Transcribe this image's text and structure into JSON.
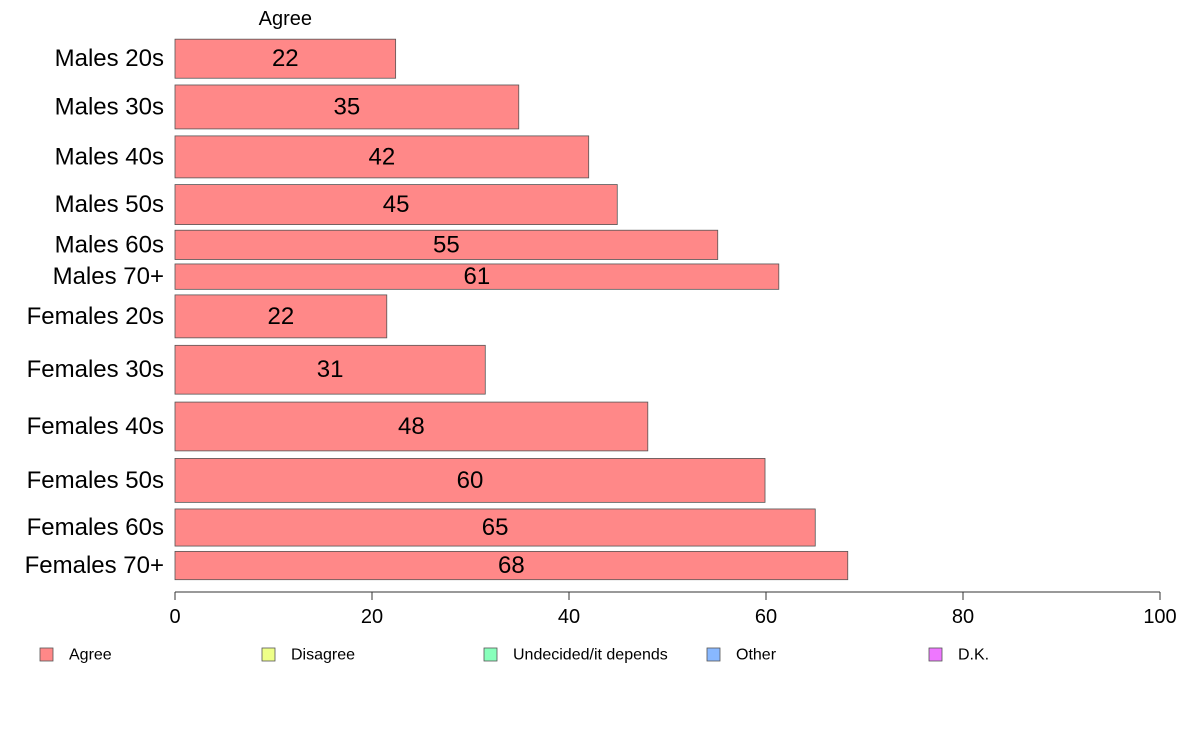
{
  "chart_data": {
    "type": "bar",
    "orientation": "horizontal",
    "title": "",
    "xlabel": "",
    "ylabel": "",
    "xlim": [
      0,
      100
    ],
    "x_ticks": [
      0,
      20,
      40,
      60,
      80,
      100
    ],
    "grid": false,
    "legend_position": "bottom",
    "categories": [
      "Males 20s",
      "Males 30s",
      "Males 40s",
      "Males 50s",
      "Males 60s",
      "Males 70+",
      "Females 20s",
      "Females 30s",
      "Females 40s",
      "Females 50s",
      "Females 60s",
      "Females 70+"
    ],
    "category_weights": [
      4,
      4.5,
      4.3,
      4.1,
      3,
      2.6,
      4.4,
      5,
      5,
      4.5,
      3.8,
      2.9
    ],
    "series": [
      {
        "name": "Agree",
        "color": "#ff8888",
        "values": [
          22.4,
          34.9,
          42,
          44.9,
          55.1,
          61.3,
          21.5,
          31.5,
          48,
          59.9,
          65,
          68.3
        ],
        "labels": [
          "22",
          "35",
          "42",
          "45",
          "55",
          "61",
          "22",
          "31",
          "48",
          "60",
          "65",
          "68"
        ]
      }
    ],
    "segment_header": "Agree",
    "legend": [
      {
        "label": "Agree",
        "color": "#ff8888"
      },
      {
        "label": "Disagree",
        "color": "#eeff88"
      },
      {
        "label": "Undecided/it depends",
        "color": "#88ffbb"
      },
      {
        "label": "Other",
        "color": "#88b8ff"
      },
      {
        "label": "D.K.",
        "color": "#ee77ff"
      }
    ]
  }
}
